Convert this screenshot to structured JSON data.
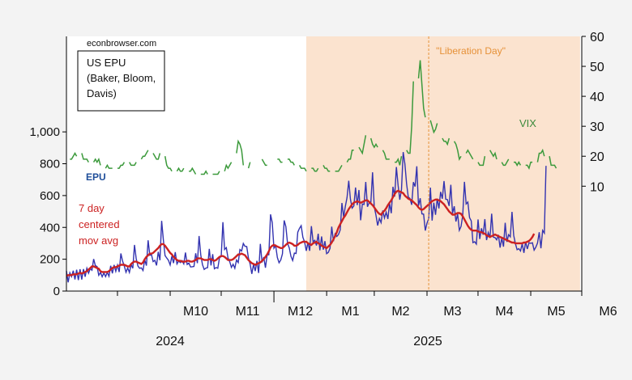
{
  "chart_data": {
    "type": "line",
    "source_label": "econbrowser.com",
    "title_box": [
      "US EPU",
      "(Baker, Bloom,",
      "Davis)"
    ],
    "annotation": "\"Liberation Day\"",
    "annotation_date": "2025-04-02",
    "shaded_region": {
      "start": "2025-01-20",
      "end": "2025-06-30"
    },
    "x_range": [
      "2024-09-01",
      "2025-07-01"
    ],
    "x_tick_labels": [
      "M10",
      "M11",
      "M12",
      "M1",
      "M2",
      "M3",
      "M4",
      "M5",
      "M6"
    ],
    "x_year_labels": [
      "2024",
      "2025"
    ],
    "y_left": {
      "ticks": [
        "0",
        "200",
        "400",
        "600",
        "800",
        "1,000"
      ],
      "range": [
        0,
        1600
      ]
    },
    "y_right": {
      "ticks": [
        "10",
        "20",
        "30",
        "40",
        "50",
        "60"
      ],
      "range": [
        -25,
        60
      ]
    },
    "series": [
      {
        "name": "EPU",
        "axis": "left",
        "color": "#3333b0",
        "start": "2024-09-01",
        "step_days": 1,
        "values": [
          127,
          55,
          115,
          91,
          128,
          73,
          134,
          69,
          137,
          72,
          138,
          90,
          143,
          112,
          141,
          131,
          201,
          160,
          154,
          99,
          117,
          90,
          114,
          91,
          117,
          93,
          159,
          111,
          164,
          124,
          163,
          120,
          236,
          188,
          157,
          118,
          146,
          117,
          167,
          143,
          290,
          203,
          158,
          143,
          146,
          129,
          197,
          160,
          319,
          225,
          228,
          185,
          193,
          161,
          247,
          194,
          441,
          323,
          223,
          208,
          193,
          164,
          219,
          176,
          245,
          170,
          189,
          179,
          191,
          171,
          242,
          167,
          176,
          152,
          153,
          155,
          237,
          175,
          346,
          226,
          166,
          136,
          144,
          147,
          265,
          161,
          232,
          140,
          148,
          143,
          210,
          216,
          433,
          261,
          273,
          208,
          185,
          149,
          168,
          143,
          195,
          179,
          261,
          252,
          299,
          281,
          280,
          208,
          170,
          108,
          168,
          126,
          190,
          114,
          296,
          180,
          214,
          147,
          227,
          228,
          482,
          430,
          269,
          286,
          211,
          178,
          195,
          234,
          444,
          405,
          299,
          271,
          218,
          192,
          238,
          236,
          370,
          394,
          411,
          338,
          309,
          253,
          306,
          253,
          408,
          310,
          319,
          286,
          360,
          256,
          343,
          260,
          314,
          235,
          243,
          268,
          405,
          313,
          359,
          343,
          356,
          384,
          553,
          465,
          532,
          587,
          693,
          577,
          521,
          535,
          650,
          540,
          635,
          445,
          547,
          544,
          685,
          530,
          555,
          557,
          746,
          529,
          477,
          412,
          456,
          430,
          506,
          459,
          496,
          453,
          551,
          489,
          655,
          594,
          779,
          665,
          574,
          638,
          873,
          799,
          674,
          590,
          582,
          542,
          684,
          657,
          784,
          536,
          583,
          485,
          483,
          380,
          427,
          455,
          650,
          443,
          555,
          479,
          581,
          519,
          623,
          580,
          691,
          577,
          575,
          535,
          668,
          488,
          533,
          437,
          484,
          382,
          406,
          476,
          686,
          547,
          559,
          461,
          441,
          305,
          310,
          295,
          450,
          327,
          394,
          354,
          452,
          320,
          368,
          334,
          486,
          339,
          336,
          322,
          353,
          273,
          333,
          279,
          429,
          309,
          354,
          341,
          498,
          350,
          298,
          260,
          266,
          252,
          297,
          240,
          310,
          264,
          303,
          300,
          303,
          257,
          276,
          302,
          370,
          269,
          381,
          364,
          787
        ]
      },
      {
        "name": "7 day centered mov avg",
        "axis": "left",
        "color": "#cc2222",
        "start": "2024-09-01",
        "step_days": 1,
        "values": [
          95,
          100,
          100,
          100,
          105,
          105,
          105,
          110,
          115,
          110,
          115,
          120,
          125,
          135,
          145,
          155,
          155,
          150,
          145,
          140,
          125,
          120,
          120,
          120,
          120,
          125,
          135,
          145,
          150,
          150,
          155,
          160,
          165,
          165,
          165,
          160,
          155,
          155,
          170,
          180,
          185,
          185,
          180,
          175,
          170,
          180,
          200,
          215,
          225,
          235,
          235,
          240,
          250,
          260,
          270,
          285,
          295,
          295,
          285,
          270,
          255,
          240,
          230,
          215,
          205,
          195,
          190,
          190,
          185,
          185,
          185,
          190,
          190,
          185,
          185,
          190,
          195,
          205,
          205,
          205,
          200,
          195,
          195,
          195,
          200,
          200,
          195,
          190,
          195,
          205,
          215,
          220,
          220,
          215,
          205,
          195,
          195,
          195,
          200,
          210,
          220,
          230,
          230,
          235,
          230,
          225,
          210,
          195,
          185,
          175,
          170,
          165,
          170,
          175,
          180,
          190,
          200,
          215,
          230,
          250,
          275,
          285,
          290,
          285,
          280,
          275,
          270,
          270,
          280,
          290,
          300,
          305,
          300,
          295,
          285,
          285,
          290,
          300,
          305,
          310,
          310,
          310,
          300,
          295,
          290,
          300,
          305,
          310,
          300,
          295,
          285,
          280,
          275,
          270,
          280,
          290,
          305,
          325,
          345,
          370,
          400,
          420,
          440,
          460,
          475,
          495,
          515,
          530,
          545,
          555,
          560,
          565,
          560,
          555,
          560,
          565,
          570,
          570,
          560,
          550,
          540,
          525,
          510,
          495,
          485,
          480,
          495,
          505,
          520,
          540,
          555,
          570,
          590,
          610,
          625,
          630,
          625,
          620,
          615,
          600,
          590,
          580,
          575,
          570,
          560,
          550,
          540,
          525,
          515,
          510,
          515,
          525,
          535,
          545,
          555,
          565,
          570,
          575,
          575,
          570,
          565,
          555,
          545,
          530,
          515,
          500,
          490,
          480,
          480,
          485,
          490,
          490,
          485,
          470,
          450,
          430,
          410,
          395,
          385,
          380,
          380,
          380,
          375,
          370,
          370,
          365,
          360,
          350,
          345,
          340,
          345,
          350,
          355,
          350,
          345,
          340,
          335,
          330,
          325,
          320,
          315,
          310,
          305,
          305,
          300,
          300,
          300,
          300,
          300,
          305,
          305,
          310,
          315,
          325,
          340,
          360
        ]
      },
      {
        "name": "VIX",
        "axis": "right",
        "color": "#3c9a3c",
        "start": "2024-09-03",
        "step_days": 1,
        "values": [
          19,
          19,
          20,
          21,
          20,
          null,
          null,
          21,
          19,
          19,
          19,
          18,
          null,
          null,
          18,
          19,
          18,
          19,
          17,
          null,
          null,
          16,
          17,
          16,
          16,
          16,
          null,
          null,
          16,
          16,
          17,
          17,
          18,
          null,
          null,
          18,
          17,
          17,
          17,
          18,
          null,
          null,
          19,
          20,
          20,
          21,
          22,
          null,
          null,
          21,
          20,
          19,
          19,
          21,
          null,
          null,
          20,
          17,
          16,
          16,
          15,
          null,
          null,
          15,
          16,
          15,
          15,
          16,
          null,
          null,
          15,
          15,
          16,
          15,
          14,
          null,
          null,
          14,
          14,
          14,
          15,
          14,
          null,
          null,
          14,
          14,
          14,
          14,
          15,
          null,
          null,
          15,
          17,
          16,
          17,
          18,
          null,
          null,
          21,
          25,
          24,
          22,
          17,
          null,
          null,
          16,
          18,
          null,
          null,
          null,
          null,
          null,
          null,
          19,
          18,
          17,
          17,
          null,
          null,
          null,
          null,
          null,
          19,
          19,
          18,
          18,
          null,
          null,
          19,
          19,
          18,
          18,
          17,
          null,
          null,
          17,
          16,
          16,
          16,
          15,
          null,
          null,
          16,
          16,
          15,
          15,
          16,
          null,
          null,
          17,
          16,
          16,
          15,
          15,
          null,
          null,
          15,
          15,
          15,
          16,
          17,
          null,
          null,
          18,
          19,
          19,
          22,
          22,
          null,
          null,
          23,
          22,
          21,
          24,
          27,
          null,
          null,
          26,
          24,
          23,
          24,
          23,
          null,
          null,
          22,
          21,
          19,
          19,
          19,
          null,
          null,
          18,
          18,
          19,
          17,
          20,
          null,
          null,
          22,
          21,
          21,
          30,
          45,
          null,
          null,
          46,
          52,
          44,
          36,
          33,
          null,
          null,
          32,
          30,
          28,
          29,
          31,
          null,
          null,
          26,
          25,
          25,
          24,
          26,
          null,
          null,
          25,
          24,
          22,
          19,
          20,
          null,
          null,
          21,
          22,
          21,
          20,
          19,
          null,
          null,
          18,
          17,
          17,
          17,
          20,
          null,
          null,
          22,
          21,
          20,
          21,
          19,
          null,
          null,
          18,
          17,
          17,
          18,
          19,
          null,
          null,
          18,
          18,
          17,
          18,
          17,
          null,
          null,
          17,
          17,
          16,
          18,
          18,
          null,
          null,
          18,
          21,
          21,
          22,
          20,
          null,
          null,
          20,
          17,
          17,
          17,
          16,
          null,
          null,
          16
        ]
      }
    ],
    "legend_placement": "inline labels",
    "grid": false
  }
}
